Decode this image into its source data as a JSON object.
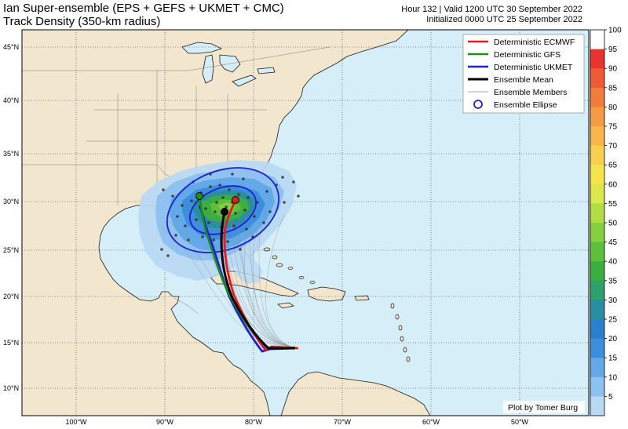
{
  "header": {
    "title_line1": "Ian Super-ensemble (EPS + GEFS + UKMET + CMC)",
    "title_line2": "Track Density (350-km radius)",
    "valid_line": "Hour 132 | Valid 1200 UTC 30 September 2022",
    "init_line": "Initialized 0000 UTC 25 September 2022"
  },
  "map": {
    "lat_labels": [
      "45°N",
      "40°N",
      "35°N",
      "30°N",
      "25°N",
      "20°N",
      "15°N",
      "10°N"
    ],
    "lon_labels": [
      "100°W",
      "90°W",
      "80°W",
      "70°W",
      "60°W",
      "50°W"
    ],
    "colors": {
      "ocean": "#d6eef8",
      "land": "#f3e6cf",
      "coast": "#1a1a1a"
    }
  },
  "legend": {
    "items": [
      {
        "label": "Deterministic ECMWF",
        "color": "#e41a1c"
      },
      {
        "label": "Deterministic GFS",
        "color": "#1a8f1a"
      },
      {
        "label": "Deterministic UKMET",
        "color": "#1f1fcf"
      },
      {
        "label": "Ensemble Mean",
        "color": "#000000"
      },
      {
        "label": "Ensemble Members",
        "color": "#8a8a8a"
      },
      {
        "label": "Ensemble Ellipse",
        "color": "#1f1fcf"
      }
    ]
  },
  "colorbar": {
    "ticks": [
      "100",
      "95",
      "90",
      "85",
      "80",
      "75",
      "70",
      "65",
      "60",
      "55",
      "50",
      "45",
      "40",
      "35",
      "30",
      "25",
      "20",
      "15",
      "10",
      "5"
    ],
    "colors": [
      "#ffffff",
      "#e8342c",
      "#ef5a36",
      "#f37b3d",
      "#f79a44",
      "#f8b54a",
      "#f8cf4e",
      "#f6e44f",
      "#dbe74a",
      "#b3dd45",
      "#86cf3e",
      "#5cc03a",
      "#3aae40",
      "#2ea06b",
      "#2a8ea1",
      "#2b7fcb",
      "#3d8fde",
      "#63a8e8",
      "#8dc1ef",
      "#b8d8f4"
    ]
  },
  "credit": "Plot by Tomer Burg"
}
